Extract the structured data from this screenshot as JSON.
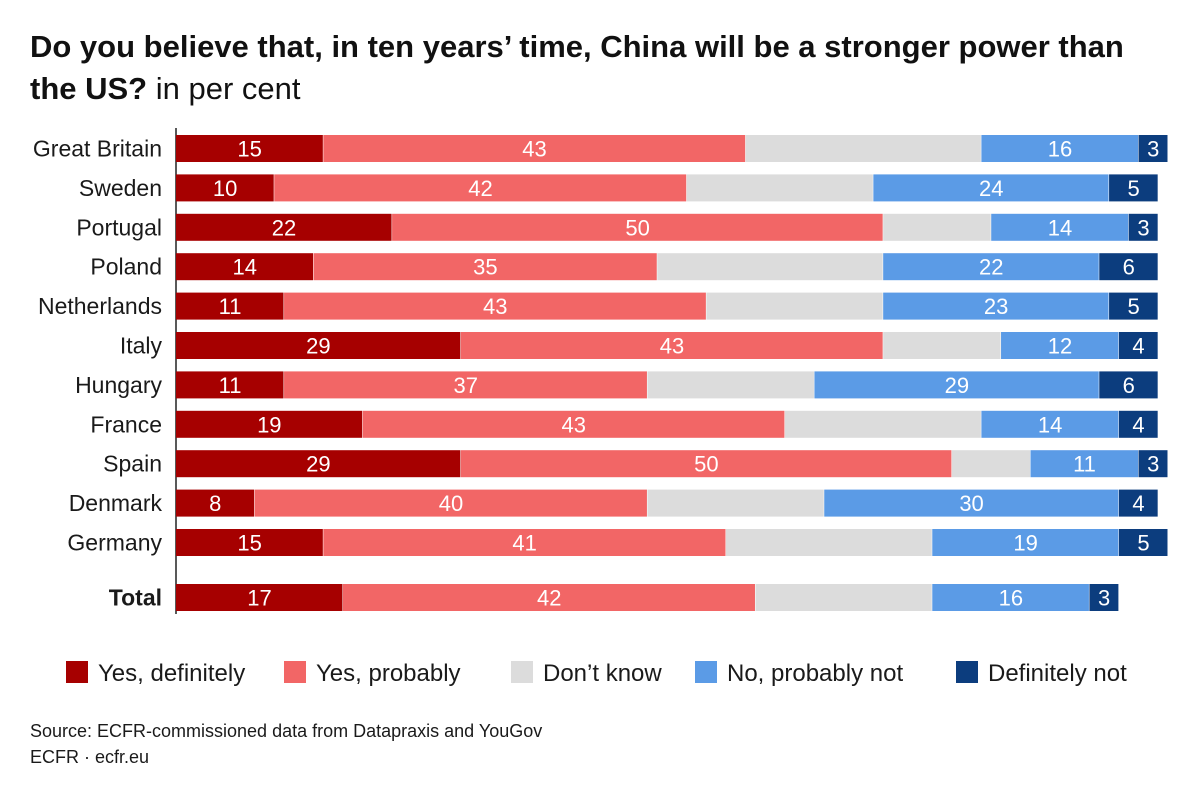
{
  "title": {
    "main": "Do you believe that, in ten years’ time, China will be a stronger power than the US?",
    "unit": "in per cent"
  },
  "source": {
    "line1": "Source: ECFR-commissioned data from Datapraxis and YouGov",
    "line2": "ECFR · ecfr.eu"
  },
  "chart_data": {
    "type": "bar",
    "orientation": "horizontal",
    "stacked": true,
    "categories": [
      "Great Britain",
      "Sweden",
      "Portugal",
      "Poland",
      "Netherlands",
      "Italy",
      "Hungary",
      "France",
      "Spain",
      "Denmark",
      "Germany",
      "Total"
    ],
    "series": [
      {
        "name": "Yes, definitely",
        "color": "#a60000",
        "values": [
          15,
          10,
          22,
          14,
          11,
          29,
          11,
          19,
          29,
          8,
          15,
          17
        ],
        "labels": [
          "15",
          "10",
          "22",
          "14",
          "11",
          "29",
          "11",
          "19",
          "29",
          "8",
          "15",
          "17"
        ]
      },
      {
        "name": "Yes, probably",
        "color": "#f26666",
        "values": [
          43,
          42,
          50,
          35,
          43,
          43,
          37,
          43,
          50,
          40,
          41,
          42
        ],
        "labels": [
          "43",
          "42",
          "50",
          "35",
          "43",
          "43",
          "37",
          "43",
          "50",
          "40",
          "41",
          "42"
        ]
      },
      {
        "name": "Don’t know",
        "color": "#dcdcdc",
        "values": [
          24,
          19,
          11,
          23,
          18,
          12,
          17,
          20,
          8,
          18,
          21,
          18
        ],
        "labels": [
          "",
          "",
          "",
          "",
          "",
          "",
          "",
          "",
          "",
          "",
          "",
          ""
        ]
      },
      {
        "name": "No, probably not",
        "color": "#5b9be6",
        "values": [
          16,
          24,
          14,
          22,
          23,
          12,
          29,
          14,
          11,
          30,
          19,
          16
        ],
        "labels": [
          "16",
          "24",
          "14",
          "22",
          "23",
          "12",
          "29",
          "14",
          "11",
          "30",
          "19",
          "16"
        ]
      },
      {
        "name": "Definitely not",
        "color": "#0c3d7e",
        "values": [
          3,
          5,
          3,
          6,
          5,
          4,
          6,
          4,
          3,
          4,
          5,
          3
        ],
        "labels": [
          "3",
          "5",
          "3",
          "6",
          "5",
          "4",
          "6",
          "4",
          "3",
          "4",
          "5",
          "3"
        ]
      }
    ],
    "xlim": [
      0,
      101
    ],
    "grid": false,
    "legend_position": "bottom",
    "emphasized_category": "Total"
  }
}
